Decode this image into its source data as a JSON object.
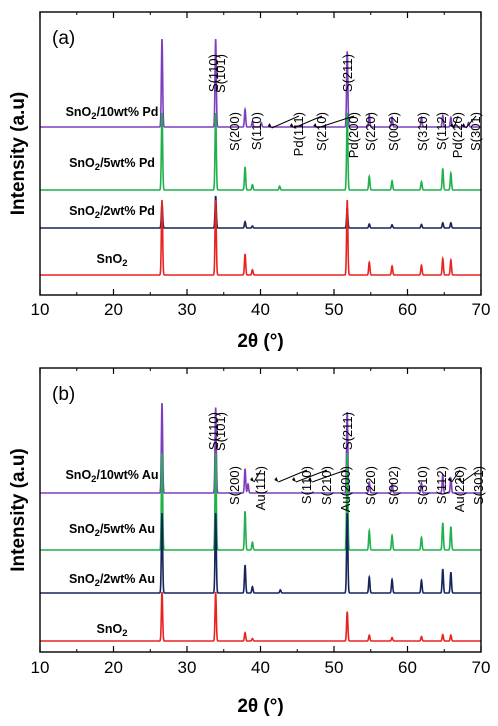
{
  "chart_data": [
    {
      "type": "line",
      "panel_label": "(a)",
      "xlabel": "2θ (°)",
      "ylabel": "Intensity (a.u)",
      "xlim": [
        10,
        70
      ],
      "xticks": [
        10,
        20,
        30,
        40,
        50,
        60,
        70
      ],
      "yticks_shown": false,
      "stacked_offset": true,
      "peak_labels": [
        {
          "text": "S(110)",
          "x": 26.6,
          "rotated": true
        },
        {
          "text": "S(101)",
          "x": 33.9,
          "rotated": true
        },
        {
          "text": "S(200)",
          "x": 37.9,
          "rotated": true
        },
        {
          "text": "S(110)",
          "x": 39.6,
          "rotated": true
        },
        {
          "text": "Pd(111)",
          "x": 41.8,
          "rotated": true,
          "arrow": true
        },
        {
          "text": "S(210)",
          "x": 44.8,
          "rotated": true,
          "arrow": true
        },
        {
          "text": "Pd(200)",
          "x": 48.0,
          "rotated": true,
          "arrow": true
        },
        {
          "text": "S(211)",
          "x": 51.8,
          "rotated": true
        },
        {
          "text": "S(220)",
          "x": 54.8,
          "rotated": true
        },
        {
          "text": "S(002)",
          "x": 57.9,
          "rotated": true
        },
        {
          "text": "S(310)",
          "x": 61.9,
          "rotated": true
        },
        {
          "text": "S(112)",
          "x": 64.8,
          "rotated": true
        },
        {
          "text": "Pd(220)",
          "x": 66.6,
          "rotated": true,
          "arrow": true
        },
        {
          "text": "S(301)",
          "x": 68.2,
          "rotated": true,
          "arrow": true
        }
      ],
      "series": [
        {
          "name": "SnO2/10wt% Pd",
          "label_main": "SnO",
          "label_sub": "2",
          "label_rest": "/10wt% Pd",
          "color": "#7b3fbe",
          "peaks": [
            [
              26.6,
              1.0
            ],
            [
              33.9,
              1.0
            ],
            [
              37.9,
              0.2
            ],
            [
              38.9,
              0.06
            ],
            [
              40.1,
              0.05
            ],
            [
              51.8,
              0.86
            ],
            [
              54.8,
              0.14
            ],
            [
              57.9,
              0.11
            ],
            [
              61.9,
              0.11
            ],
            [
              64.8,
              0.13
            ],
            [
              65.9,
              0.11
            ],
            [
              68.3,
              0.05
            ]
          ]
        },
        {
          "name": "SnO2/5wt% Pd",
          "label_main": "SnO",
          "label_sub": "2",
          "label_rest": "/5wt% Pd",
          "color": "#1fb14c",
          "peaks": [
            [
              26.6,
              1.0
            ],
            [
              33.9,
              1.0
            ],
            [
              37.9,
              0.3
            ],
            [
              38.9,
              0.07
            ],
            [
              42.6,
              0.05
            ],
            [
              51.8,
              1.0
            ],
            [
              54.8,
              0.18
            ],
            [
              57.9,
              0.12
            ],
            [
              61.9,
              0.11
            ],
            [
              64.8,
              0.28
            ],
            [
              65.9,
              0.22
            ]
          ]
        },
        {
          "name": "SnO2/2wt% Pd",
          "label_main": "SnO",
          "label_sub": "2",
          "label_rest": "/2wt% Pd",
          "color": "#16245a",
          "peaks": [
            [
              26.6,
              0.62
            ],
            [
              33.9,
              0.8
            ],
            [
              37.9,
              0.16
            ],
            [
              38.9,
              0.05
            ],
            [
              51.8,
              0.5
            ],
            [
              54.8,
              0.1
            ],
            [
              57.9,
              0.08
            ],
            [
              61.9,
              0.09
            ],
            [
              64.8,
              0.13
            ],
            [
              65.9,
              0.13
            ]
          ]
        },
        {
          "name": "SnO2",
          "label_main": "SnO",
          "label_sub": "2",
          "label_rest": "",
          "color": "#e8231f",
          "peaks": [
            [
              26.6,
              1.0
            ],
            [
              33.9,
              1.0
            ],
            [
              37.9,
              0.28
            ],
            [
              38.9,
              0.07
            ],
            [
              51.8,
              1.0
            ],
            [
              54.8,
              0.17
            ],
            [
              57.9,
              0.12
            ],
            [
              61.9,
              0.13
            ],
            [
              64.8,
              0.22
            ],
            [
              65.9,
              0.2
            ]
          ]
        }
      ]
    },
    {
      "type": "line",
      "panel_label": "(b)",
      "xlabel": "2θ (°)",
      "ylabel": "Intensity (a.u)",
      "xlim": [
        10,
        70
      ],
      "xticks": [
        10,
        20,
        30,
        40,
        50,
        60,
        70
      ],
      "yticks_shown": false,
      "stacked_offset": true,
      "peak_labels": [
        {
          "text": "S(110)",
          "x": 26.6,
          "rotated": true
        },
        {
          "text": "S(101)",
          "x": 33.9,
          "rotated": true
        },
        {
          "text": "S(200)",
          "x": 37.9,
          "rotated": true
        },
        {
          "text": "Au(111)",
          "x": 39.4,
          "rotated": true,
          "arrow": true
        },
        {
          "text": "S(110)",
          "x": 42.7,
          "rotated": true,
          "arrow": true
        },
        {
          "text": "S(210)",
          "x": 45.1,
          "rotated": true,
          "arrow": true
        },
        {
          "text": "Au(200)",
          "x": 47.3,
          "rotated": true,
          "arrow": true
        },
        {
          "text": "S(211)",
          "x": 51.8,
          "rotated": true
        },
        {
          "text": "S(220)",
          "x": 54.8,
          "rotated": true
        },
        {
          "text": "S(002)",
          "x": 57.9,
          "rotated": true
        },
        {
          "text": "S(310)",
          "x": 61.9,
          "rotated": true
        },
        {
          "text": "S(112)",
          "x": 64.8,
          "rotated": true
        },
        {
          "text": "Au(220)",
          "x": 66.3,
          "rotated": true,
          "arrow": true
        },
        {
          "text": "S(301)",
          "x": 67.7,
          "rotated": true,
          "arrow": true
        }
      ],
      "series": [
        {
          "name": "SnO2/10wt% Au",
          "label_main": "SnO",
          "label_sub": "2",
          "label_rest": "/10wt% Au",
          "color": "#7b3fbe",
          "peaks": [
            [
              26.6,
              1.0
            ],
            [
              33.9,
              0.95
            ],
            [
              37.9,
              0.27
            ],
            [
              38.3,
              0.1
            ],
            [
              51.8,
              0.9
            ],
            [
              54.8,
              0.12
            ],
            [
              57.9,
              0.1
            ],
            [
              61.9,
              0.11
            ],
            [
              64.8,
              0.2
            ],
            [
              65.9,
              0.16
            ]
          ]
        },
        {
          "name": "SnO2/5wt% Au",
          "label_main": "SnO",
          "label_sub": "2",
          "label_rest": "/5wt% Au",
          "color": "#1fb14c",
          "peaks": [
            [
              26.6,
              1.0
            ],
            [
              33.9,
              1.0
            ],
            [
              37.9,
              0.4
            ],
            [
              38.9,
              0.08
            ],
            [
              51.8,
              1.0
            ],
            [
              54.8,
              0.2
            ],
            [
              57.9,
              0.15
            ],
            [
              61.9,
              0.13
            ],
            [
              64.8,
              0.28
            ],
            [
              65.9,
              0.24
            ]
          ]
        },
        {
          "name": "SnO2/2wt% Au",
          "label_main": "SnO",
          "label_sub": "2",
          "label_rest": "/2wt% Au",
          "color": "#16245a",
          "peaks": [
            [
              26.6,
              1.0
            ],
            [
              33.9,
              1.0
            ],
            [
              37.9,
              0.35
            ],
            [
              38.9,
              0.08
            ],
            [
              42.7,
              0.04
            ],
            [
              51.8,
              1.0
            ],
            [
              54.8,
              0.2
            ],
            [
              57.9,
              0.17
            ],
            [
              61.9,
              0.16
            ],
            [
              64.8,
              0.3
            ],
            [
              65.9,
              0.26
            ]
          ]
        },
        {
          "name": "SnO2",
          "label_main": "SnO",
          "label_sub": "2",
          "label_rest": "",
          "color": "#e8231f",
          "peaks": [
            [
              26.6,
              1.0
            ],
            [
              33.9,
              1.0
            ],
            [
              37.9,
              0.17
            ],
            [
              38.9,
              0.05
            ],
            [
              51.8,
              0.6
            ],
            [
              54.8,
              0.12
            ],
            [
              57.9,
              0.07
            ],
            [
              61.9,
              0.09
            ],
            [
              64.8,
              0.13
            ],
            [
              65.9,
              0.12
            ]
          ]
        }
      ]
    }
  ]
}
